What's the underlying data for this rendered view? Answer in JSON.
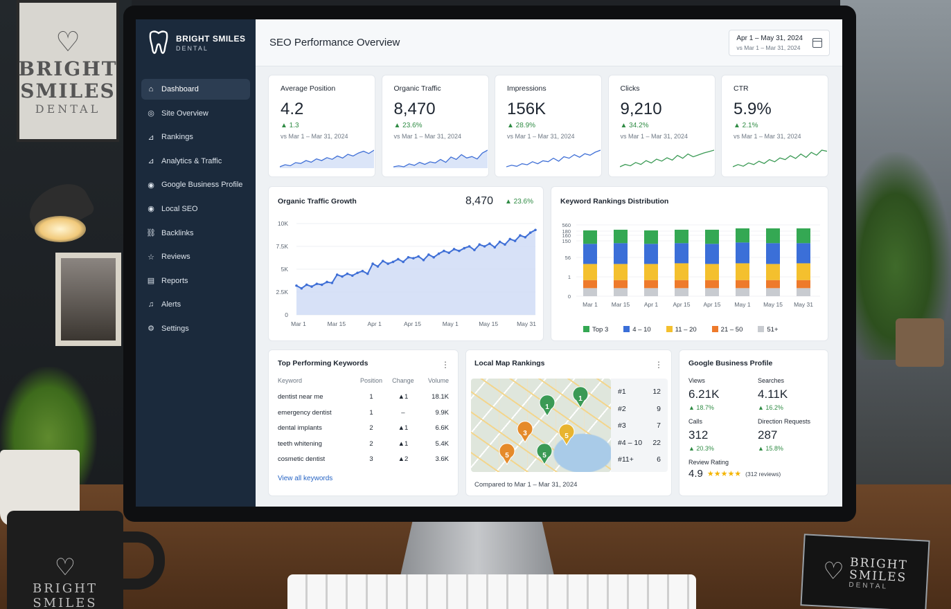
{
  "scene": {
    "poster_text": [
      "BRIGHT",
      "SMILES",
      "DENTAL"
    ],
    "mug_text": [
      "BRIGHT",
      "SMILES"
    ],
    "card_text": [
      "BRIGHT",
      "SMILES",
      "DENTAL"
    ]
  },
  "brand": {
    "name": "BRIGHT SMILES",
    "sub": "DENTAL"
  },
  "sidebar": {
    "items": [
      {
        "label": "Dashboard",
        "icon": "home-icon"
      },
      {
        "label": "Site Overview",
        "icon": "globe-icon"
      },
      {
        "label": "Rankings",
        "icon": "chart-icon"
      },
      {
        "label": "Analytics & Traffic",
        "icon": "chart-icon"
      },
      {
        "label": "Google Business Profile",
        "icon": "pin-icon"
      },
      {
        "label": "Local SEO",
        "icon": "pin-icon"
      },
      {
        "label": "Backlinks",
        "icon": "link-icon"
      },
      {
        "label": "Reviews",
        "icon": "star-icon"
      },
      {
        "label": "Reports",
        "icon": "report-icon"
      },
      {
        "label": "Alerts",
        "icon": "bell-icon"
      },
      {
        "label": "Settings",
        "icon": "gear-icon"
      }
    ]
  },
  "header": {
    "title": "SEO Performance Overview",
    "date_range": "Apr 1 – May 31, 2024",
    "compare_range": "vs Mar 1 – Mar 31, 2024"
  },
  "kpis": [
    {
      "title": "Average Position",
      "value": "4.2",
      "delta": "▲ 1.3",
      "compare": "vs Mar 1 – Mar 31, 2024",
      "spark": [
        3,
        4,
        3.5,
        5,
        4.6,
        6,
        5.2,
        6.8,
        6,
        7.4,
        6.6,
        8.2,
        7.2,
        9,
        8.2,
        9.6,
        10.5,
        9.4,
        11
      ]
    },
    {
      "title": "Organic Traffic",
      "value": "8,470",
      "delta": "▲ 23.6%",
      "compare": "vs Mar 1 – Mar 31, 2024",
      "spark": [
        3,
        3.4,
        3,
        4.2,
        3.6,
        4.8,
        4,
        5,
        4.6,
        6,
        4.8,
        7,
        6,
        8,
        6.6,
        7.2,
        6.2,
        8.6,
        9.8
      ]
    },
    {
      "title": "Impressions",
      "value": "156K",
      "delta": "▲ 28.9%",
      "compare": "vs Mar 1 – Mar 31, 2024",
      "spark": [
        3,
        3.6,
        3.2,
        4.2,
        3.8,
        5,
        4.2,
        5.4,
        5,
        6.4,
        5.2,
        7,
        6.4,
        7.8,
        6.8,
        8.2,
        7.6,
        8.8,
        9.6
      ]
    },
    {
      "title": "Clicks",
      "value": "9,210",
      "delta": "▲ 34.2%",
      "compare": "vs Mar 1 – Mar 31, 2024",
      "spark": [
        3,
        4,
        3.4,
        4.8,
        4,
        5.6,
        4.6,
        6.2,
        5.4,
        6.8,
        5.8,
        7.8,
        6.6,
        8.4,
        7.2,
        8,
        8.8,
        9.4,
        10
      ]
    },
    {
      "title": "CTR",
      "value": "5.9%",
      "delta": "▲ 2.1%",
      "compare": "vs Mar 1 – Mar 31, 2024",
      "spark": [
        3,
        3.8,
        3.2,
        4.4,
        3.8,
        5,
        4.2,
        5.6,
        4.8,
        6.2,
        5.6,
        7,
        6,
        7.6,
        6.4,
        8.2,
        7.2,
        9,
        8.6
      ]
    }
  ],
  "traffic_chart": {
    "title": "Organic Traffic Growth",
    "value": "8,470",
    "delta": "▲ 23.6%",
    "color": "#3f6fd6"
  },
  "rank_chart": {
    "title": "Keyword Rankings Distribution",
    "colors": [
      "#34a853",
      "#3b6fd8",
      "#f4c02e",
      "#ee7a2b",
      "#c8cbd0"
    ]
  },
  "chart_data": [
    {
      "type": "area",
      "title": "Organic Traffic Growth",
      "x_ticks": [
        "Mar 1",
        "Mar 15",
        "Apr 1",
        "Apr 15",
        "May 1",
        "May 15",
        "May 31"
      ],
      "y_ticks": [
        "0",
        "2.5K",
        "5K",
        "7.5K",
        "10K"
      ],
      "ylim": [
        0,
        10000
      ],
      "values": [
        3200,
        2900,
        3300,
        3100,
        3400,
        3300,
        3600,
        3500,
        4400,
        4200,
        4500,
        4300,
        4600,
        4800,
        4500,
        5600,
        5300,
        5900,
        5600,
        5800,
        6100,
        5800,
        6300,
        6200,
        6400,
        6000,
        6600,
        6300,
        6700,
        7000,
        6800,
        7200,
        7000,
        7300,
        7500,
        7100,
        7700,
        7500,
        7800,
        7400,
        8000,
        7700,
        8300,
        8100,
        8700,
        8500,
        9000,
        9300
      ]
    },
    {
      "type": "bar",
      "title": "Keyword Rankings Distribution",
      "stacked": true,
      "categories": [
        "Mar 1",
        "Mar 15",
        "Apr 1",
        "Apr 15",
        "Apr 15",
        "May 1",
        "May 15",
        "May 31"
      ],
      "y_ticks": [
        "0",
        "1",
        "56",
        "150",
        "160",
        "180",
        "560"
      ],
      "series": [
        {
          "name": "51+",
          "values": [
            12,
            12,
            12,
            12,
            12,
            12,
            12,
            12
          ]
        },
        {
          "name": "21 – 50",
          "values": [
            12,
            12,
            12,
            12,
            12,
            12,
            12,
            12
          ]
        },
        {
          "name": "11 – 20",
          "values": [
            24,
            24,
            24,
            25,
            24,
            25,
            24,
            25
          ]
        },
        {
          "name": "4 – 10",
          "values": [
            30,
            31,
            30,
            30,
            30,
            31,
            31,
            30
          ]
        },
        {
          "name": "Top 3",
          "values": [
            20,
            20,
            20,
            20,
            21,
            21,
            22,
            22
          ]
        }
      ],
      "legend_position": "bottom"
    }
  ],
  "keywords": {
    "title": "Top Performing Keywords",
    "headers": [
      "Keyword",
      "Position",
      "Change",
      "Volume"
    ],
    "rows": [
      {
        "kw": "dentist near me",
        "pos": "1",
        "chg": "▲1",
        "vol": "18.1K"
      },
      {
        "kw": "emergency dentist",
        "pos": "1",
        "chg": "–",
        "vol": "9.9K"
      },
      {
        "kw": "dental implants",
        "pos": "2",
        "chg": "▲1",
        "vol": "6.6K"
      },
      {
        "kw": "teeth whitening",
        "pos": "2",
        "chg": "▲1",
        "vol": "5.4K"
      },
      {
        "kw": "cosmetic dentist",
        "pos": "3",
        "chg": "▲2",
        "vol": "3.6K"
      }
    ],
    "link": "View all keywords"
  },
  "local_map": {
    "title": "Local Map Rankings",
    "pins": [
      "1",
      "1",
      "3",
      "5",
      "5",
      "5"
    ],
    "ranks": [
      {
        "label": "#1",
        "count": "12"
      },
      {
        "label": "#2",
        "count": "9"
      },
      {
        "label": "#3",
        "count": "7"
      },
      {
        "label": "#4 – 10",
        "count": "22"
      },
      {
        "label": "#11+",
        "count": "6"
      }
    ],
    "compare": "Compared to Mar 1 – Mar 31, 2024"
  },
  "gbp": {
    "title": "Google Business Profile",
    "stats": [
      {
        "label": "Views",
        "value": "6.21K",
        "delta": "▲ 18.7%"
      },
      {
        "label": "Searches",
        "value": "4.11K",
        "delta": "▲ 16.2%"
      },
      {
        "label": "Calls",
        "value": "312",
        "delta": "▲ 20.3%"
      },
      {
        "label": "Direction Requests",
        "value": "287",
        "delta": "▲ 15.8%"
      }
    ],
    "rating_label": "Review Rating",
    "rating": "4.9",
    "stars": "★★★★★",
    "reviews": "(312 reviews)"
  }
}
